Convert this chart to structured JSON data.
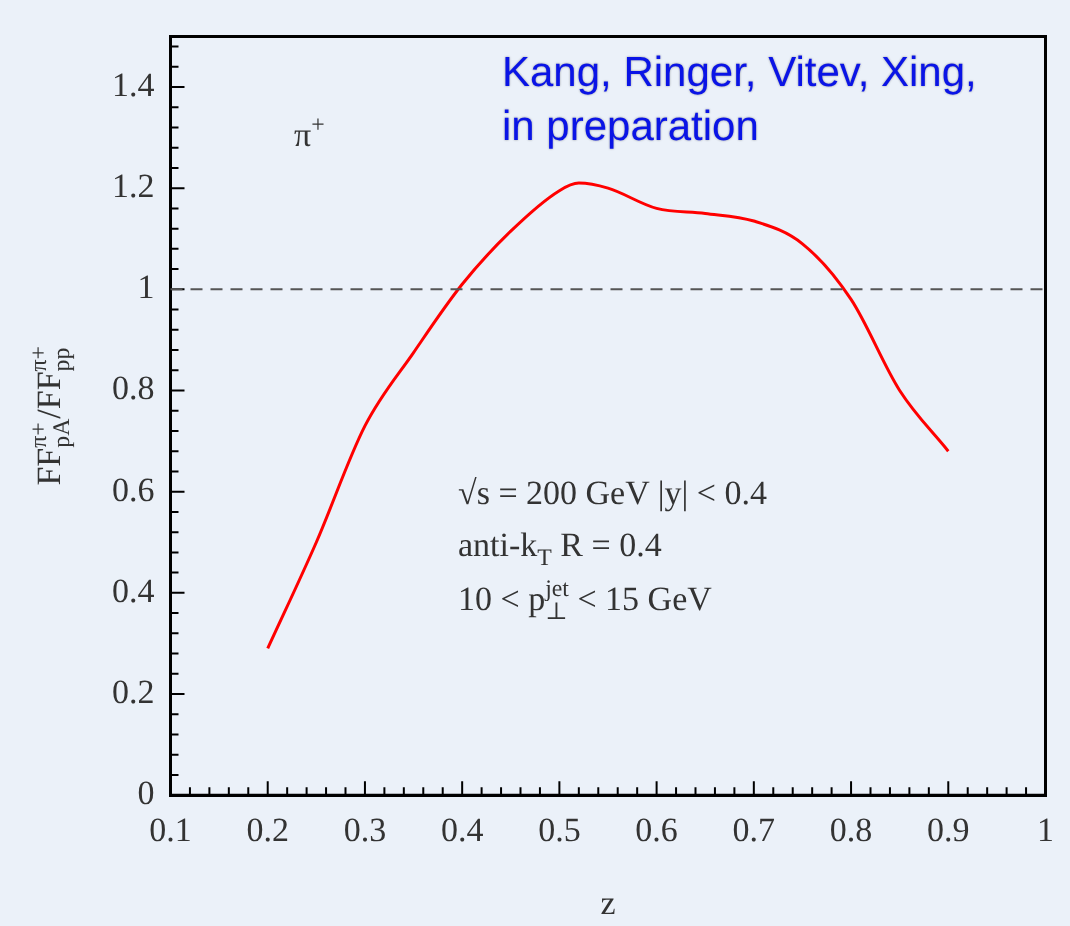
{
  "chart_data": {
    "type": "line",
    "xlabel": "z",
    "ylabel": "FF$_{pA}$$^{π+}$/FF$_{pp}$$^{π+}$",
    "x": [
      0.2,
      0.25,
      0.3,
      0.35,
      0.4,
      0.45,
      0.5,
      0.52,
      0.55,
      0.6,
      0.65,
      0.7,
      0.75,
      0.8,
      0.85,
      0.9
    ],
    "series": [
      {
        "color": "#ff0000",
        "values": [
          0.29,
          0.5,
          0.73,
          0.875,
          1.01,
          1.115,
          1.195,
          1.21,
          1.2,
          1.16,
          1.15,
          1.135,
          1.09,
          0.98,
          0.8,
          0.68
        ]
      }
    ],
    "xlim": [
      0.1,
      1
    ],
    "xticks": [
      0.1,
      0.2,
      0.3,
      0.4,
      0.5,
      0.6,
      0.7,
      0.8,
      0.9,
      1
    ],
    "ylim": [
      0,
      1.5
    ],
    "yticks": [
      0,
      0.2,
      0.4,
      0.6,
      0.8,
      1,
      1.2,
      1.4
    ],
    "ref_lines": [
      {
        "axis": "y",
        "value": 1,
        "color": "#555555",
        "line_style": "dashed"
      }
    ],
    "annotations": [
      "π$^{+}$",
      "Kang, Ringer, Vitev, Xing,",
      "in preparation",
      "√s = 200 GeV |y| < 0.4",
      "anti-k$_{T}$ R = 0.4",
      "10 < p$_{⊥}$$^{jet}$ < 15 GeV"
    ],
    "grid": false,
    "legend": false,
    "marker": "none",
    "line_style": "solid"
  }
}
